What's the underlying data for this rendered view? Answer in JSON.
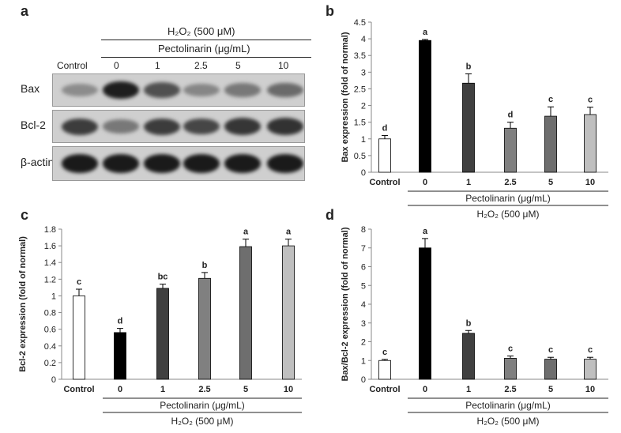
{
  "panel_a": {
    "letter": "a",
    "treatment": "H₂O₂ (500 μM)",
    "compound": "Pectolinarin (μg/mL)",
    "lanes": [
      "Control",
      "0",
      "1",
      "2.5",
      "5",
      "10"
    ],
    "blots": [
      {
        "label": "Bax",
        "intensity": [
          0.35,
          0.9,
          0.65,
          0.38,
          0.45,
          0.52
        ]
      },
      {
        "label": "Bcl-2",
        "intensity": [
          0.75,
          0.45,
          0.75,
          0.7,
          0.78,
          0.8
        ]
      },
      {
        "label": "β-actin",
        "intensity": [
          0.92,
          0.92,
          0.92,
          0.92,
          0.92,
          0.92
        ]
      }
    ]
  },
  "chart_data": [
    {
      "panel": "b",
      "type": "bar",
      "categories": [
        "Control",
        "0",
        "1",
        "2.5",
        "5",
        "10"
      ],
      "values": [
        1.0,
        3.95,
        2.67,
        1.32,
        1.68,
        1.73
      ],
      "errors": [
        0.1,
        0.03,
        0.28,
        0.18,
        0.28,
        0.22
      ],
      "significance": [
        "d",
        "a",
        "b",
        "d",
        "c",
        "c"
      ],
      "colors": [
        "#ffffff",
        "#000000",
        "#404040",
        "#808080",
        "#6e6e6e",
        "#bfbfbf"
      ],
      "ylabel": "Bax expression (fold of normal)",
      "ylim": [
        0,
        4.5
      ],
      "yticks": [
        "0",
        "0.5",
        "1",
        "1.5",
        "2",
        "2.5",
        "3",
        "3.5",
        "4",
        "4.5"
      ],
      "group_label": "Pectolinarin (μg/mL)",
      "treatment_label": "H₂O₂ (500 μM)"
    },
    {
      "panel": "c",
      "type": "bar",
      "categories": [
        "Control",
        "0",
        "1",
        "2.5",
        "5",
        "10"
      ],
      "values": [
        1.0,
        0.56,
        1.09,
        1.21,
        1.59,
        1.6
      ],
      "errors": [
        0.08,
        0.05,
        0.05,
        0.07,
        0.09,
        0.08
      ],
      "significance": [
        "c",
        "d",
        "bc",
        "b",
        "a",
        "a"
      ],
      "colors": [
        "#ffffff",
        "#000000",
        "#404040",
        "#808080",
        "#6e6e6e",
        "#bfbfbf"
      ],
      "ylabel": "Bcl-2 expression (fold of normal)",
      "ylim": [
        0,
        1.8
      ],
      "yticks": [
        "0",
        "0.2",
        "0.4",
        "0.6",
        "0.8",
        "1",
        "1.2",
        "1.4",
        "1.6",
        "1.8"
      ],
      "group_label": "Pectolinarin (μg/mL)",
      "treatment_label": "H₂O₂ (500 μM)"
    },
    {
      "panel": "d",
      "type": "bar",
      "categories": [
        "Control",
        "0",
        "1",
        "2.5",
        "5",
        "10"
      ],
      "values": [
        1.0,
        7.0,
        2.45,
        1.12,
        1.07,
        1.07
      ],
      "errors": [
        0.06,
        0.5,
        0.15,
        0.12,
        0.1,
        0.1
      ],
      "significance": [
        "c",
        "a",
        "b",
        "c",
        "c",
        "c"
      ],
      "colors": [
        "#ffffff",
        "#000000",
        "#404040",
        "#808080",
        "#6e6e6e",
        "#bfbfbf"
      ],
      "ylabel": "Bax/Bcl-2 expression (fold of normal)",
      "ylim": [
        0,
        8
      ],
      "yticks": [
        "0",
        "1",
        "2",
        "3",
        "4",
        "5",
        "6",
        "7",
        "8"
      ],
      "group_label": "Pectolinarin (μg/mL)",
      "treatment_label": "H₂O₂ (500 μM)"
    }
  ]
}
